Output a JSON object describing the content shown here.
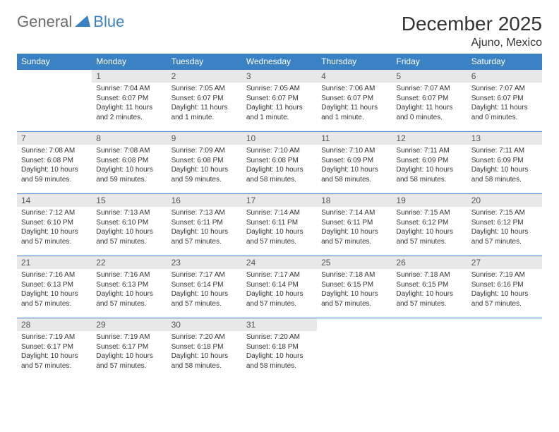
{
  "logo": {
    "part1": "General",
    "part2": "Blue"
  },
  "title": "December 2025",
  "location": "Ajuno, Mexico",
  "colors": {
    "headerBar": "#3b82c4",
    "headerText": "#ffffff",
    "dayNumBg": "#e8e8e8",
    "dayNumText": "#555555",
    "bodyText": "#333333",
    "logoGray": "#6b6b6b",
    "logoBlue": "#3b82c4",
    "background": "#ffffff"
  },
  "typography": {
    "title_fontsize": 28,
    "location_fontsize": 16,
    "header_fontsize": 12,
    "daynum_fontsize": 12,
    "body_fontsize": 10,
    "font_family": "Arial"
  },
  "weekdays": [
    "Sunday",
    "Monday",
    "Tuesday",
    "Wednesday",
    "Thursday",
    "Friday",
    "Saturday"
  ],
  "weeks": [
    [
      {
        "n": "",
        "empty": true,
        "l1": "",
        "l2": "",
        "l3": "",
        "l4": ""
      },
      {
        "n": "1",
        "l1": "Sunrise: 7:04 AM",
        "l2": "Sunset: 6:07 PM",
        "l3": "Daylight: 11 hours",
        "l4": "and 2 minutes."
      },
      {
        "n": "2",
        "l1": "Sunrise: 7:05 AM",
        "l2": "Sunset: 6:07 PM",
        "l3": "Daylight: 11 hours",
        "l4": "and 1 minute."
      },
      {
        "n": "3",
        "l1": "Sunrise: 7:05 AM",
        "l2": "Sunset: 6:07 PM",
        "l3": "Daylight: 11 hours",
        "l4": "and 1 minute."
      },
      {
        "n": "4",
        "l1": "Sunrise: 7:06 AM",
        "l2": "Sunset: 6:07 PM",
        "l3": "Daylight: 11 hours",
        "l4": "and 1 minute."
      },
      {
        "n": "5",
        "l1": "Sunrise: 7:07 AM",
        "l2": "Sunset: 6:07 PM",
        "l3": "Daylight: 11 hours",
        "l4": "and 0 minutes."
      },
      {
        "n": "6",
        "l1": "Sunrise: 7:07 AM",
        "l2": "Sunset: 6:07 PM",
        "l3": "Daylight: 11 hours",
        "l4": "and 0 minutes."
      }
    ],
    [
      {
        "n": "7",
        "l1": "Sunrise: 7:08 AM",
        "l2": "Sunset: 6:08 PM",
        "l3": "Daylight: 10 hours",
        "l4": "and 59 minutes."
      },
      {
        "n": "8",
        "l1": "Sunrise: 7:08 AM",
        "l2": "Sunset: 6:08 PM",
        "l3": "Daylight: 10 hours",
        "l4": "and 59 minutes."
      },
      {
        "n": "9",
        "l1": "Sunrise: 7:09 AM",
        "l2": "Sunset: 6:08 PM",
        "l3": "Daylight: 10 hours",
        "l4": "and 59 minutes."
      },
      {
        "n": "10",
        "l1": "Sunrise: 7:10 AM",
        "l2": "Sunset: 6:08 PM",
        "l3": "Daylight: 10 hours",
        "l4": "and 58 minutes."
      },
      {
        "n": "11",
        "l1": "Sunrise: 7:10 AM",
        "l2": "Sunset: 6:09 PM",
        "l3": "Daylight: 10 hours",
        "l4": "and 58 minutes."
      },
      {
        "n": "12",
        "l1": "Sunrise: 7:11 AM",
        "l2": "Sunset: 6:09 PM",
        "l3": "Daylight: 10 hours",
        "l4": "and 58 minutes."
      },
      {
        "n": "13",
        "l1": "Sunrise: 7:11 AM",
        "l2": "Sunset: 6:09 PM",
        "l3": "Daylight: 10 hours",
        "l4": "and 58 minutes."
      }
    ],
    [
      {
        "n": "14",
        "l1": "Sunrise: 7:12 AM",
        "l2": "Sunset: 6:10 PM",
        "l3": "Daylight: 10 hours",
        "l4": "and 57 minutes."
      },
      {
        "n": "15",
        "l1": "Sunrise: 7:13 AM",
        "l2": "Sunset: 6:10 PM",
        "l3": "Daylight: 10 hours",
        "l4": "and 57 minutes."
      },
      {
        "n": "16",
        "l1": "Sunrise: 7:13 AM",
        "l2": "Sunset: 6:11 PM",
        "l3": "Daylight: 10 hours",
        "l4": "and 57 minutes."
      },
      {
        "n": "17",
        "l1": "Sunrise: 7:14 AM",
        "l2": "Sunset: 6:11 PM",
        "l3": "Daylight: 10 hours",
        "l4": "and 57 minutes."
      },
      {
        "n": "18",
        "l1": "Sunrise: 7:14 AM",
        "l2": "Sunset: 6:11 PM",
        "l3": "Daylight: 10 hours",
        "l4": "and 57 minutes."
      },
      {
        "n": "19",
        "l1": "Sunrise: 7:15 AM",
        "l2": "Sunset: 6:12 PM",
        "l3": "Daylight: 10 hours",
        "l4": "and 57 minutes."
      },
      {
        "n": "20",
        "l1": "Sunrise: 7:15 AM",
        "l2": "Sunset: 6:12 PM",
        "l3": "Daylight: 10 hours",
        "l4": "and 57 minutes."
      }
    ],
    [
      {
        "n": "21",
        "l1": "Sunrise: 7:16 AM",
        "l2": "Sunset: 6:13 PM",
        "l3": "Daylight: 10 hours",
        "l4": "and 57 minutes."
      },
      {
        "n": "22",
        "l1": "Sunrise: 7:16 AM",
        "l2": "Sunset: 6:13 PM",
        "l3": "Daylight: 10 hours",
        "l4": "and 57 minutes."
      },
      {
        "n": "23",
        "l1": "Sunrise: 7:17 AM",
        "l2": "Sunset: 6:14 PM",
        "l3": "Daylight: 10 hours",
        "l4": "and 57 minutes."
      },
      {
        "n": "24",
        "l1": "Sunrise: 7:17 AM",
        "l2": "Sunset: 6:14 PM",
        "l3": "Daylight: 10 hours",
        "l4": "and 57 minutes."
      },
      {
        "n": "25",
        "l1": "Sunrise: 7:18 AM",
        "l2": "Sunset: 6:15 PM",
        "l3": "Daylight: 10 hours",
        "l4": "and 57 minutes."
      },
      {
        "n": "26",
        "l1": "Sunrise: 7:18 AM",
        "l2": "Sunset: 6:15 PM",
        "l3": "Daylight: 10 hours",
        "l4": "and 57 minutes."
      },
      {
        "n": "27",
        "l1": "Sunrise: 7:19 AM",
        "l2": "Sunset: 6:16 PM",
        "l3": "Daylight: 10 hours",
        "l4": "and 57 minutes."
      }
    ],
    [
      {
        "n": "28",
        "l1": "Sunrise: 7:19 AM",
        "l2": "Sunset: 6:17 PM",
        "l3": "Daylight: 10 hours",
        "l4": "and 57 minutes."
      },
      {
        "n": "29",
        "l1": "Sunrise: 7:19 AM",
        "l2": "Sunset: 6:17 PM",
        "l3": "Daylight: 10 hours",
        "l4": "and 57 minutes."
      },
      {
        "n": "30",
        "l1": "Sunrise: 7:20 AM",
        "l2": "Sunset: 6:18 PM",
        "l3": "Daylight: 10 hours",
        "l4": "and 58 minutes."
      },
      {
        "n": "31",
        "l1": "Sunrise: 7:20 AM",
        "l2": "Sunset: 6:18 PM",
        "l3": "Daylight: 10 hours",
        "l4": "and 58 minutes."
      },
      {
        "n": "",
        "empty": true,
        "l1": "",
        "l2": "",
        "l3": "",
        "l4": ""
      },
      {
        "n": "",
        "empty": true,
        "l1": "",
        "l2": "",
        "l3": "",
        "l4": ""
      },
      {
        "n": "",
        "empty": true,
        "l1": "",
        "l2": "",
        "l3": "",
        "l4": ""
      }
    ]
  ]
}
